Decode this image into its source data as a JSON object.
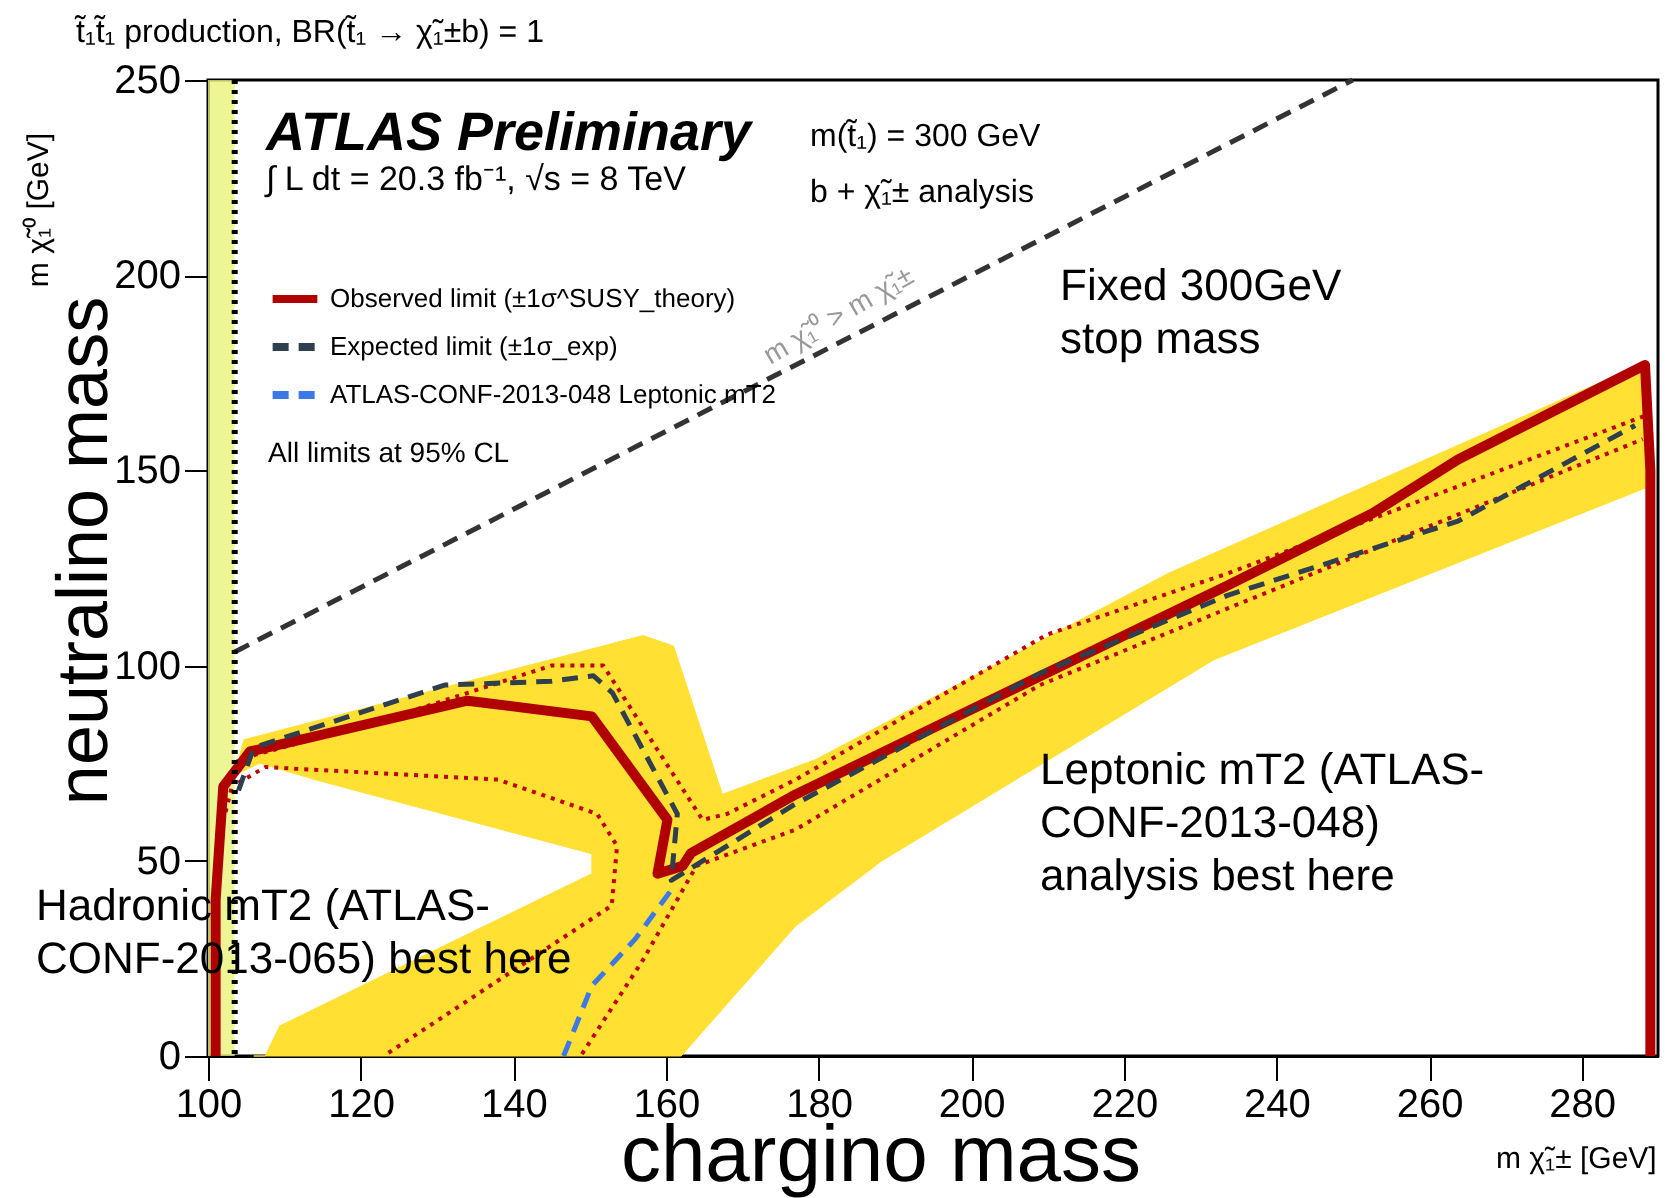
{
  "chart_data": {
    "type": "line",
    "title": "t̃₁t̃₁ production, BR(t̃₁ → χ̃₁±b) = 1",
    "xlabel": "chargino mass",
    "ylabel": "neutralino mass",
    "xlim": [
      100,
      290
    ],
    "ylim": [
      0,
      250
    ],
    "xticks": [
      100,
      120,
      140,
      160,
      180,
      200,
      220,
      240,
      260,
      280
    ],
    "yticks": [
      0,
      50,
      100,
      150,
      200,
      250
    ],
    "grid": false,
    "legend": "top left",
    "marker": "none",
    "series": [
      {
        "type": "area",
        "color": "#ffe033",
        "x": [
          106,
          107.5,
          109.4,
          150.3,
          150.3,
          114,
          106.8,
          103.5,
          104.7,
          157,
          161,
          167.4,
          179.7,
          225.8,
          288.3,
          289,
          231.8,
          188.3,
          177,
          162
        ],
        "values": [
          0,
          0,
          7.7,
          46.7,
          51.8,
          70.8,
          75,
          72,
          81,
          107.7,
          105,
          67,
          76,
          123.6,
          177.6,
          146,
          101.5,
          50,
          33.3,
          0
        ]
      },
      {
        "color": "#c00000",
        "line_style": "dotted",
        "x": [
          102,
          104,
          123,
          145,
          151.8,
          164.8,
          168,
          177,
          210,
          233.6,
          288.3
        ],
        "values": [
          60,
          76,
          86,
          100,
          100,
          60.5,
          62,
          70.8,
          108,
          123.6,
          164
        ]
      },
      {
        "color": "#c00000",
        "line_style": "dotted",
        "x": [
          104,
          107.5,
          138,
          151,
          153.6,
          152.9,
          123
        ],
        "values": [
          70,
          74,
          70.8,
          62,
          53.8,
          38.5,
          0
        ]
      },
      {
        "color": "#c00000",
        "line_style": "dotted",
        "x": [
          149,
          157,
          164,
          177,
          209,
          288
        ],
        "values": [
          0.5,
          24.6,
          48.7,
          58,
          95,
          158
        ]
      },
      {
        "name": "Observed limit (±1σ^SUSY_theory)",
        "color": "#b00000",
        "line_style": "solid",
        "x": [
          101,
          101,
          102,
          105.5,
          134,
          150.3,
          160.2,
          158.9,
          162.2,
          163.3,
          177,
          233.6,
          252.6,
          263.8,
          288.3,
          289,
          289
        ],
        "values": [
          0,
          40,
          69,
          78,
          91,
          87,
          60.5,
          46.7,
          48.7,
          52,
          67,
          120.5,
          139,
          152.8,
          177,
          150,
          0
        ]
      },
      {
        "name": "Expected limit (±1σ_exp)",
        "color": "#2f3f4f",
        "line_style": "dashed",
        "x": [
          104,
          106,
          131,
          145,
          150.5,
          153,
          161.5,
          160.7,
          177,
          209,
          233.6,
          263.8,
          287
        ],
        "values": [
          68,
          79,
          95,
          96,
          97.4,
          93,
          62,
          45,
          64.6,
          98,
          118,
          137,
          161.5
        ]
      },
      {
        "name": "ATLAS-CONF-2013-048 Leptonic mT2",
        "color": "#3c78e6",
        "line_style": "dashed",
        "x": [
          146.6,
          150.3,
          156,
          160.7
        ],
        "values": [
          0,
          18,
          30,
          42.5
        ]
      },
      {
        "color": "#333333",
        "line_style": "dashed",
        "x": [
          103.5,
          250
        ],
        "values": [
          103.5,
          250
        ]
      }
    ],
    "bands": [
      {
        "axis": "x",
        "from": 100,
        "to": 103.5,
        "color": "#e8f27a"
      }
    ],
    "ref_lines": [
      {
        "axis": "x",
        "value": 103.5,
        "color": "#000000",
        "line_style": "dotted"
      }
    ],
    "annotations": [
      "ATLAS Preliminary",
      "∫ L dt = 20.3 fb⁻¹, √s = 8 TeV",
      "m(t̃₁) = 300 GeV",
      "b + χ̃₁± analysis",
      "All limits at 95% CL",
      "Fixed 300GeV\nstop mass",
      "Leptonic mT2 (ATLAS-\nCONF-2013-048)\nanalysis best here",
      "Hadronic mT2 (ATLAS-\nCONF-2013-065) best here",
      "m χ̃₁± [GeV]",
      "m χ̃₁⁰ [GeV]",
      "m χ̃₁⁰ > m χ̃₁±"
    ]
  }
}
